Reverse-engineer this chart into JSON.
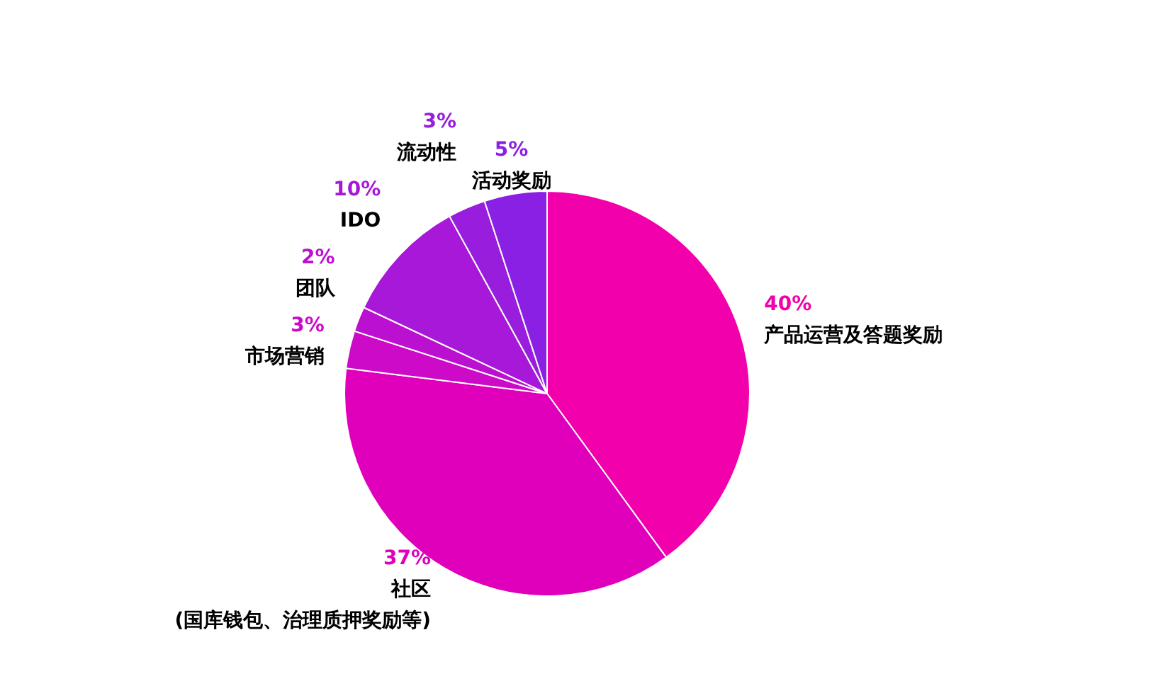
{
  "chart_data": {
    "type": "pie",
    "categories": [
      "产品运营及答题奖励",
      "社区\n(国库钱包、治理质押奖励等)",
      "市场营销",
      "团队",
      "IDO",
      "流动性",
      "活动奖励"
    ],
    "values": [
      40,
      37,
      3,
      2,
      10,
      3,
      5
    ],
    "colors": [
      "#f200ac",
      "#e000bc",
      "#cc0ac8",
      "#bc10d0",
      "#a818d8",
      "#981ddc",
      "#8a20e4"
    ],
    "value_labels": [
      "40%",
      "37%",
      "3%",
      "2%",
      "10%",
      "3%",
      "5%"
    ],
    "legend": false
  }
}
